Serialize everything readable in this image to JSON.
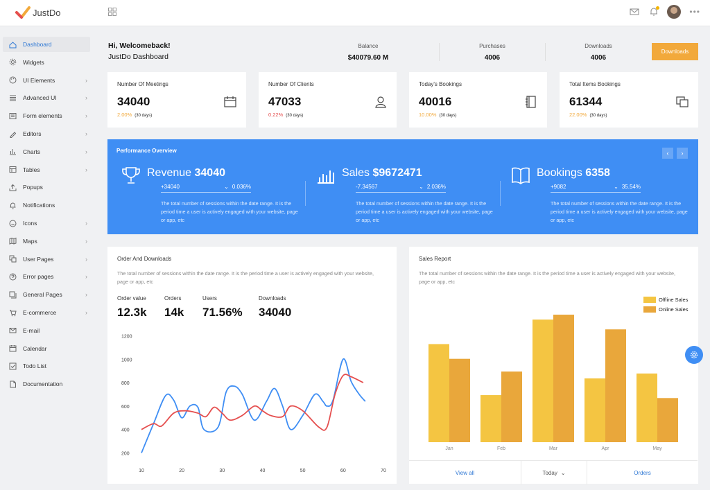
{
  "app": {
    "logo_text": "JustDo"
  },
  "sidebar": {
    "items": [
      {
        "label": "Dashboard",
        "icon": "home-icon",
        "chevron": false,
        "active": true
      },
      {
        "label": "Widgets",
        "icon": "settings-icon",
        "chevron": false
      },
      {
        "label": "UI Elements",
        "icon": "palette-icon",
        "chevron": true
      },
      {
        "label": "Advanced UI",
        "icon": "layers-icon",
        "chevron": true
      },
      {
        "label": "Form elements",
        "icon": "form-icon",
        "chevron": true
      },
      {
        "label": "Editors",
        "icon": "pen-icon",
        "chevron": true
      },
      {
        "label": "Charts",
        "icon": "chart-icon",
        "chevron": true
      },
      {
        "label": "Tables",
        "icon": "table-icon",
        "chevron": true
      },
      {
        "label": "Popups",
        "icon": "upload-icon",
        "chevron": false
      },
      {
        "label": "Notifications",
        "icon": "bell-icon",
        "chevron": false
      },
      {
        "label": "Icons",
        "icon": "smile-icon",
        "chevron": true
      },
      {
        "label": "Maps",
        "icon": "map-icon",
        "chevron": true
      },
      {
        "label": "User Pages",
        "icon": "copy-icon",
        "chevron": true
      },
      {
        "label": "Error pages",
        "icon": "help-icon",
        "chevron": true
      },
      {
        "label": "General Pages",
        "icon": "pages-icon",
        "chevron": true
      },
      {
        "label": "E-commerce",
        "icon": "cart-icon",
        "chevron": true
      },
      {
        "label": "E-mail",
        "icon": "mail-icon",
        "chevron": false
      },
      {
        "label": "Calendar",
        "icon": "calendar-icon",
        "chevron": false
      },
      {
        "label": "Todo List",
        "icon": "check-icon",
        "chevron": false
      },
      {
        "label": "Documentation",
        "icon": "doc-icon",
        "chevron": false
      }
    ]
  },
  "header": {
    "greeting": "Hi, Welcomeback!",
    "subtitle": "JustDo Dashboard",
    "stats": [
      {
        "label": "Balance",
        "value": "$40079.60 M"
      },
      {
        "label": "Purchases",
        "value": "4006"
      },
      {
        "label": "Downloads",
        "value": "4006"
      }
    ],
    "button_label": "Downloads"
  },
  "stat_cards": [
    {
      "title": "Number Of Meetings",
      "value": "34040",
      "pct": "2.00%",
      "pct_color": "#f2a93b",
      "period": "(30 days)",
      "icon": "calendar-icon"
    },
    {
      "title": "Number Of Clients",
      "value": "47033",
      "pct": "0.22%",
      "pct_color": "#e54f4f",
      "period": "(30 days)",
      "icon": "user-icon"
    },
    {
      "title": "Today's Bookings",
      "value": "40016",
      "pct": "10.00%",
      "pct_color": "#f2a93b",
      "period": "(30 days)",
      "icon": "notebook-icon"
    },
    {
      "title": "Total Items Bookings",
      "value": "61344",
      "pct": "22.00%",
      "pct_color": "#f2a93b",
      "period": "(30 days)",
      "icon": "copy-icon"
    }
  ],
  "performance": {
    "title": "Performance Overview",
    "columns": [
      {
        "name": "Revenue",
        "value": "34040",
        "delta": "+34040",
        "change": "0.036%",
        "icon": "trophy-icon",
        "desc": "The total number of sessions within the date range. It is the period time a user is actively engaged with your website, page or app, etc"
      },
      {
        "name": "Sales",
        "value": "$9672471",
        "delta": "-7.34567",
        "change": "2.036%",
        "icon": "bar-chart-icon",
        "desc": "The total number of sessions within the date range. It is the period time a user is actively engaged with your website, page or app, etc"
      },
      {
        "name": "Bookings",
        "value": "6358",
        "delta": "+9082",
        "change": "35.54%",
        "icon": "book-icon",
        "desc": "The total number of sessions within the date range. It is the period time a user is actively engaged with your website, page or app, etc"
      }
    ]
  },
  "order_downloads": {
    "title": "Order And Downloads",
    "desc": "The total number of sessions within the date range. It is the period time a user is actively engaged with your website, page or app, etc",
    "stats": [
      {
        "label": "Order value",
        "value": "12.3k"
      },
      {
        "label": "Orders",
        "value": "14k"
      },
      {
        "label": "Users",
        "value": "71.56%"
      },
      {
        "label": "Downloads",
        "value": "34040"
      }
    ]
  },
  "sales_report": {
    "title": "Sales Report",
    "desc": "The total number of sessions within the date range. It is the period time a user is actively engaged with your website, page or app, etc",
    "footer": {
      "view_all": "View all",
      "period": "Today",
      "orders": "Orders"
    }
  },
  "colors": {
    "blue": "#3f8ef4",
    "red": "#e54f4f",
    "orange": "#f2a93b",
    "yellow": "#f4c542"
  },
  "chart_data": [
    {
      "type": "line",
      "x": [
        10,
        20,
        30,
        40,
        50,
        60,
        70
      ],
      "xticks": [
        10,
        20,
        30,
        40,
        50,
        60,
        70
      ],
      "yticks": [
        200,
        400,
        600,
        800,
        1000,
        1200
      ],
      "xlim": [
        10,
        70
      ],
      "ylim": [
        150,
        1250
      ],
      "grid": false,
      "series": [
        {
          "color": "#3f8ef4",
          "points": [
            [
              10,
              200
            ],
            [
              13,
              450
            ],
            [
              16,
              690
            ],
            [
              18,
              650
            ],
            [
              20,
              500
            ],
            [
              22,
              600
            ],
            [
              24,
              590
            ],
            [
              25.5,
              400
            ],
            [
              29,
              420
            ],
            [
              31,
              720
            ],
            [
              33,
              770
            ],
            [
              35,
              700
            ],
            [
              38,
              480
            ],
            [
              41,
              640
            ],
            [
              43,
              750
            ],
            [
              45,
              600
            ],
            [
              47,
              400
            ],
            [
              50,
              520
            ],
            [
              53,
              700
            ],
            [
              55,
              640
            ],
            [
              56,
              600
            ],
            [
              57.5,
              650
            ],
            [
              60,
              1000
            ],
            [
              62,
              810
            ],
            [
              64,
              700
            ],
            [
              65.5,
              640
            ]
          ]
        },
        {
          "color": "#e54f4f",
          "points": [
            [
              10,
              400
            ],
            [
              13,
              450
            ],
            [
              15,
              430
            ],
            [
              18,
              540
            ],
            [
              21,
              560
            ],
            [
              24,
              540
            ],
            [
              26,
              510
            ],
            [
              28,
              590
            ],
            [
              30,
              540
            ],
            [
              32,
              480
            ],
            [
              35,
              520
            ],
            [
              38,
              600
            ],
            [
              40,
              560
            ],
            [
              42,
              520
            ],
            [
              45,
              510
            ],
            [
              47,
              600
            ],
            [
              50,
              560
            ],
            [
              54,
              420
            ],
            [
              56,
              420
            ],
            [
              58,
              700
            ],
            [
              60,
              860
            ],
            [
              62,
              850
            ],
            [
              65,
              800
            ]
          ]
        }
      ]
    },
    {
      "type": "bar",
      "categories": [
        "Jan",
        "Feb",
        "Mar",
        "Apr",
        "May"
      ],
      "ylim": [
        0,
        1300
      ],
      "legend": "top-right",
      "series": [
        {
          "name": "Offline Sales",
          "color": "#f4c542",
          "values": [
            1000,
            480,
            1250,
            650,
            700
          ]
        },
        {
          "name": "Online Sales",
          "color": "#e9a73b",
          "values": [
            850,
            720,
            1300,
            1150,
            450
          ]
        }
      ]
    }
  ]
}
